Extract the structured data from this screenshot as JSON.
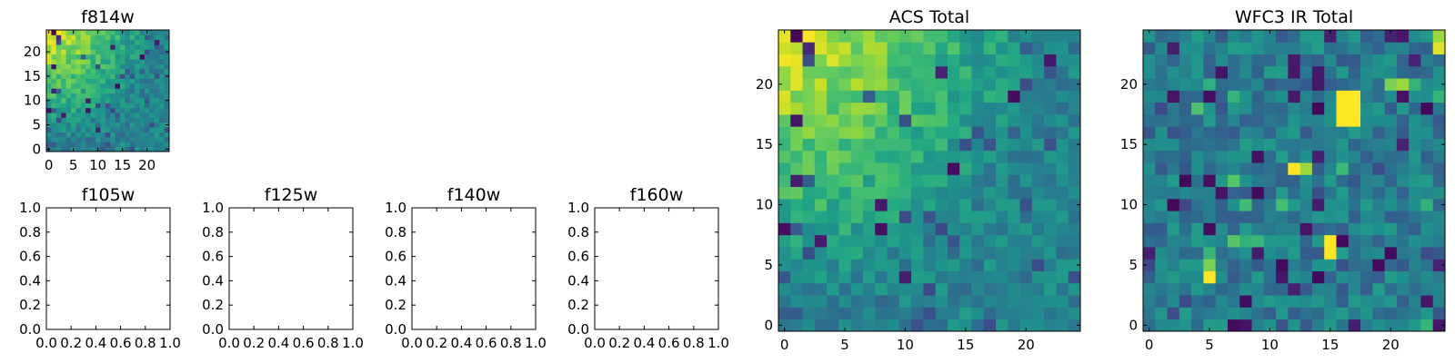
{
  "chart_data": [
    {
      "type": "heatmap",
      "title": "f814w",
      "colormap": "viridis",
      "grid_size": [
        25,
        25
      ],
      "xlim": [
        -0.5,
        24.5
      ],
      "ylim": [
        -0.5,
        24.5
      ],
      "xticks": [
        0,
        5,
        10,
        15,
        20
      ],
      "yticks": [
        0,
        5,
        10,
        15,
        20
      ],
      "xtick_labels": [
        "0",
        "5",
        "10",
        "15",
        "20"
      ],
      "ytick_labels": [
        "0",
        "5",
        "10",
        "15",
        "20"
      ],
      "value_range": [
        0,
        1
      ],
      "pattern": "bright (yellow) top-left, mostly green-teal elsewhere, a few dark outliers",
      "seed": 11
    },
    {
      "type": "heatmap",
      "title": "f105w",
      "empty": true,
      "xlim": [
        0,
        1
      ],
      "ylim": [
        0,
        1
      ],
      "xtick_labels": [
        "0.0",
        "0.2",
        "0.4",
        "0.6",
        "0.8",
        "1.0"
      ],
      "ytick_labels": [
        "0.0",
        "0.2",
        "0.4",
        "0.6",
        "0.8",
        "1.0"
      ]
    },
    {
      "type": "heatmap",
      "title": "f125w",
      "empty": true,
      "xlim": [
        0,
        1
      ],
      "ylim": [
        0,
        1
      ],
      "xtick_labels": [
        "0.0",
        "0.2",
        "0.4",
        "0.6",
        "0.8",
        "1.0"
      ],
      "ytick_labels": [
        "0.0",
        "0.2",
        "0.4",
        "0.6",
        "0.8",
        "1.0"
      ]
    },
    {
      "type": "heatmap",
      "title": "f140w",
      "empty": true,
      "xlim": [
        0,
        1
      ],
      "ylim": [
        0,
        1
      ],
      "xtick_labels": [
        "0.0",
        "0.2",
        "0.4",
        "0.6",
        "0.8",
        "1.0"
      ],
      "ytick_labels": [
        "0.0",
        "0.2",
        "0.4",
        "0.6",
        "0.8",
        "1.0"
      ]
    },
    {
      "type": "heatmap",
      "title": "f160w",
      "empty": true,
      "xlim": [
        0,
        1
      ],
      "ylim": [
        0,
        1
      ],
      "xtick_labels": [
        "0.0",
        "0.2",
        "0.4",
        "0.6",
        "0.8",
        "1.0"
      ],
      "ytick_labels": [
        "0.0",
        "0.2",
        "0.4",
        "0.6",
        "0.8",
        "1.0"
      ]
    },
    {
      "type": "heatmap",
      "title": "ACS Total",
      "colormap": "viridis",
      "grid_size": [
        25,
        25
      ],
      "xlim": [
        -0.5,
        24.5
      ],
      "ylim": [
        -0.5,
        24.5
      ],
      "xticks": [
        0,
        5,
        10,
        15,
        20
      ],
      "yticks": [
        0,
        5,
        10,
        15,
        20
      ],
      "xtick_labels": [
        "0",
        "5",
        "10",
        "15",
        "20"
      ],
      "ytick_labels": [
        "0",
        "5",
        "10",
        "15",
        "20"
      ],
      "value_range": [
        0,
        1
      ],
      "pattern": "bright (yellow) top-left, mostly green-teal elsewhere, a few dark outliers",
      "seed": 11
    },
    {
      "type": "heatmap",
      "title": "WFC3 IR Total",
      "colormap": "viridis",
      "grid_size": [
        25,
        25
      ],
      "xlim": [
        -0.5,
        24.5
      ],
      "ylim": [
        -0.5,
        24.5
      ],
      "xticks": [
        0,
        5,
        10,
        15,
        20
      ],
      "yticks": [
        0,
        5,
        10,
        15,
        20
      ],
      "xtick_labels": [
        "0",
        "5",
        "10",
        "15",
        "20"
      ],
      "ytick_labels": [
        "0",
        "5",
        "10",
        "15",
        "20"
      ],
      "value_range": [
        0,
        1
      ],
      "pattern": "mostly teal noise with a bright yellow patch near (16,17), smaller yellow spots near (12,13), (15,6), (5,4), (24,23)",
      "seed": 29,
      "hotspots": [
        {
          "x": 16,
          "y": 17,
          "value": 1.0
        },
        {
          "x": 17,
          "y": 17,
          "value": 1.0
        },
        {
          "x": 16,
          "y": 18,
          "value": 1.0
        },
        {
          "x": 17,
          "y": 18,
          "value": 1.0
        },
        {
          "x": 16,
          "y": 19,
          "value": 1.0
        },
        {
          "x": 17,
          "y": 19,
          "value": 1.0
        },
        {
          "x": 12,
          "y": 13,
          "value": 1.0
        },
        {
          "x": 13,
          "y": 13,
          "value": 0.85
        },
        {
          "x": 15,
          "y": 6,
          "value": 1.0
        },
        {
          "x": 15,
          "y": 7,
          "value": 1.0
        },
        {
          "x": 5,
          "y": 4,
          "value": 1.0
        },
        {
          "x": 5,
          "y": 5,
          "value": 0.8
        },
        {
          "x": 24,
          "y": 23,
          "value": 0.95
        },
        {
          "x": 24,
          "y": 24,
          "value": 0.85
        },
        {
          "x": 20,
          "y": 20,
          "value": 0.8
        },
        {
          "x": 21,
          "y": 20,
          "value": 0.85
        }
      ]
    }
  ]
}
